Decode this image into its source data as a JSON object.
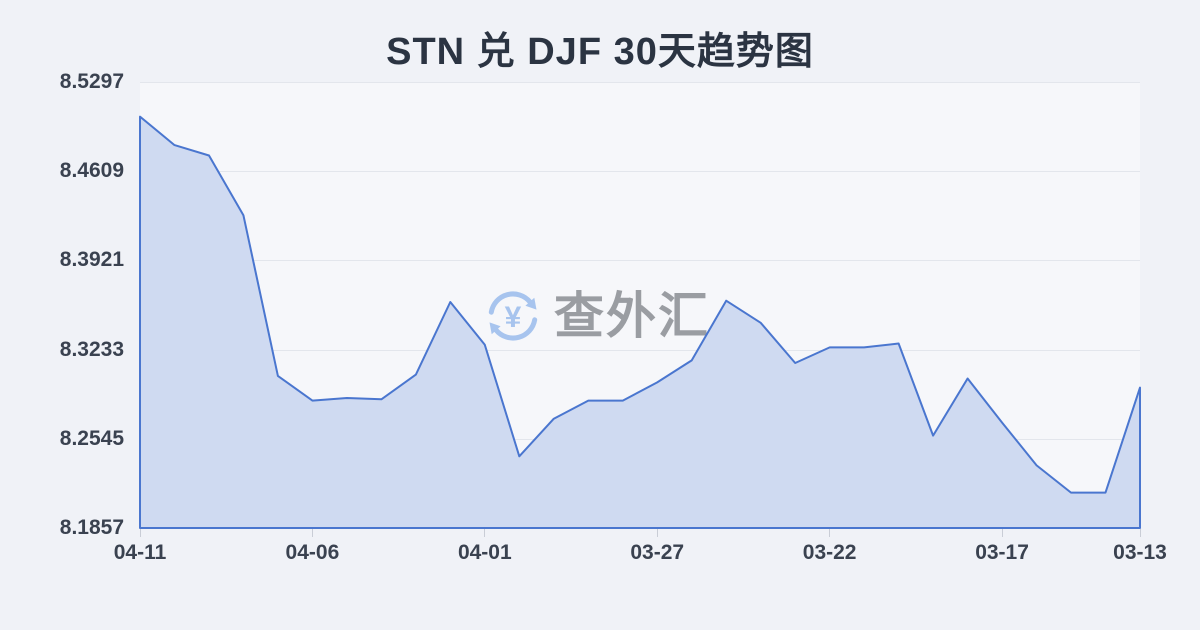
{
  "title": "STN 兑 DJF 30天趋势图",
  "watermark": {
    "text": "查外汇",
    "yen_symbol": "¥",
    "icon_color": "#a7c4ee",
    "text_color": "#9a9da2"
  },
  "chart_data": {
    "type": "area",
    "title": "STN 兑 DJF 30天趋势图",
    "x": [
      "04-11",
      "04-10",
      "04-09",
      "04-08",
      "04-07",
      "04-06",
      "04-05",
      "04-04",
      "04-03",
      "04-02",
      "04-01",
      "03-31",
      "03-30",
      "03-29",
      "03-28",
      "03-27",
      "03-26",
      "03-25",
      "03-24",
      "03-23",
      "03-22",
      "03-21",
      "03-20",
      "03-19",
      "03-18",
      "03-17",
      "03-16",
      "03-15",
      "03-14",
      "03-13"
    ],
    "values": [
      8.503,
      8.481,
      8.473,
      8.427,
      8.303,
      8.284,
      8.286,
      8.285,
      8.304,
      8.36,
      8.327,
      8.241,
      8.27,
      8.284,
      8.284,
      8.298,
      8.315,
      8.361,
      8.344,
      8.313,
      8.325,
      8.325,
      8.328,
      8.257,
      8.301,
      8.267,
      8.234,
      8.213,
      8.213,
      8.294
    ],
    "y_ticks": [
      8.5297,
      8.4609,
      8.3921,
      8.3233,
      8.2545,
      8.1857
    ],
    "x_tick_indices": [
      0,
      5,
      10,
      15,
      20,
      25,
      29
    ],
    "x_tick_labels": [
      "04-11",
      "04-06",
      "04-01",
      "03-27",
      "03-22",
      "03-17",
      "03-13"
    ],
    "ylim": [
      8.1857,
      8.5297
    ],
    "xlabel": "",
    "ylabel": "",
    "grid": true,
    "legend": false,
    "line_color": "#4a76cf",
    "fill_color": "#cfdaf1",
    "background": "#f0f2f7",
    "plot_background": "#f6f7fa"
  }
}
